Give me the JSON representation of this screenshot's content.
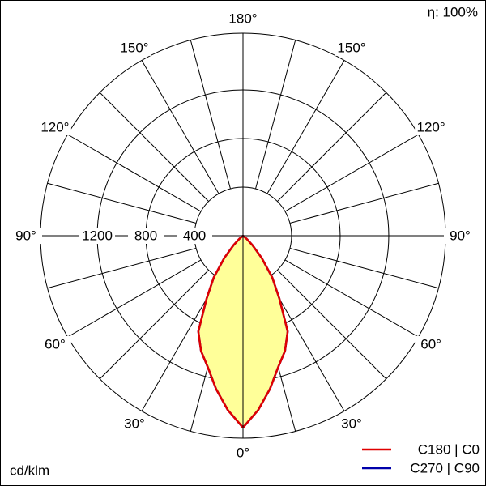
{
  "chart_data": {
    "type": "polar",
    "unit_label": "cd/klm",
    "efficiency": "η: 100%",
    "angles": [
      0,
      5,
      10,
      15,
      20,
      25,
      30,
      35,
      40,
      45,
      50,
      55,
      60,
      90,
      120,
      150,
      180
    ],
    "series": [
      {
        "name": "C270 | C90",
        "color": "#0000aa",
        "values": [
          1580,
          1440,
          1280,
          1120,
          1010,
          870,
          600,
          420,
          240,
          110,
          40,
          0,
          0,
          0,
          0,
          0,
          0
        ]
      },
      {
        "name": "C180 | C0",
        "color": "#e00000",
        "values": [
          1580,
          1440,
          1280,
          1120,
          1010,
          870,
          600,
          420,
          240,
          110,
          40,
          0,
          0,
          0,
          0,
          0,
          0
        ]
      }
    ],
    "fill": "#ffff99",
    "rlim": [
      0,
      1667
    ],
    "rticks": [
      400,
      800,
      1200
    ],
    "angle_ticks": [
      {
        "value": 0,
        "label": "0°"
      },
      {
        "value": 30,
        "label": "30°"
      },
      {
        "value": 60,
        "label": "60°"
      },
      {
        "value": 90,
        "label": "90°"
      },
      {
        "value": 120,
        "label": "120°"
      },
      {
        "value": 150,
        "label": "150°"
      },
      {
        "value": 180,
        "label": "180°"
      }
    ],
    "legend": "bottom-right"
  }
}
